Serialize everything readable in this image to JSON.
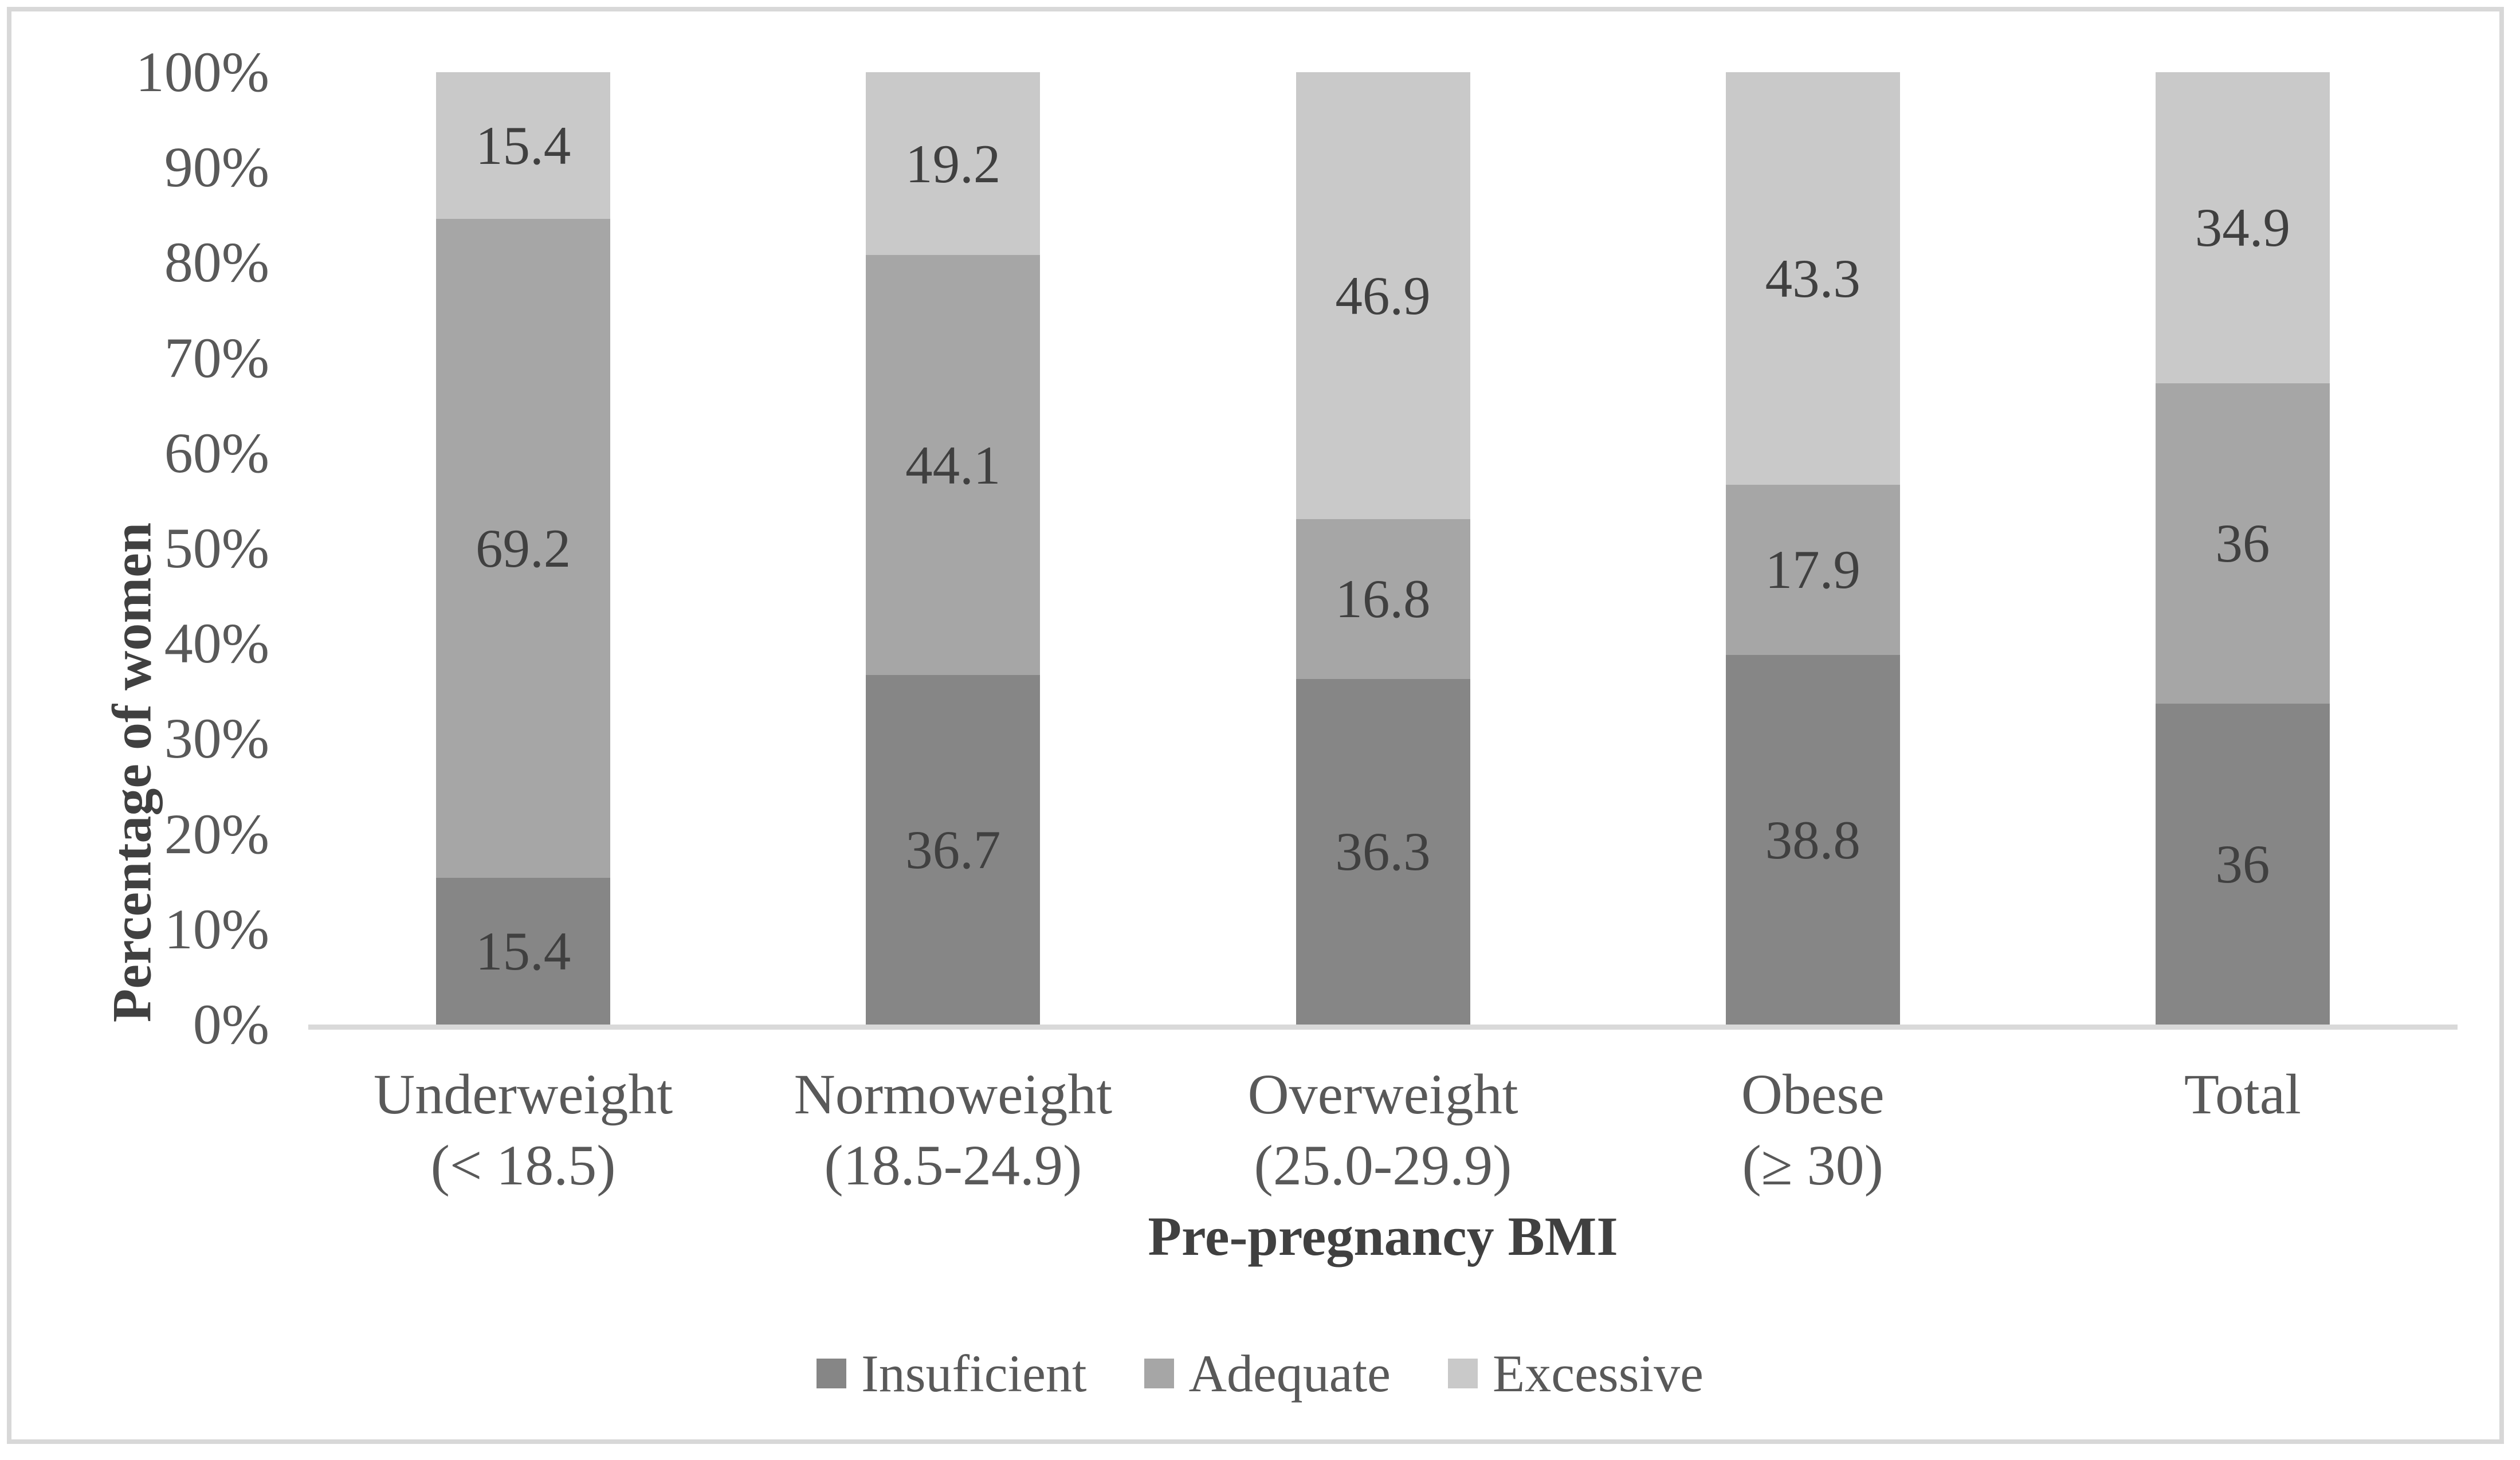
{
  "chart_data": {
    "type": "bar",
    "stacked": true,
    "percent_stacked": true,
    "title": "",
    "xlabel": "Pre-pregnancy BMI",
    "ylabel": "Percentage of women",
    "ylim": [
      0,
      100
    ],
    "grid": false,
    "legend_position": "bottom",
    "y_ticks": [
      "0%",
      "10%",
      "20%",
      "30%",
      "40%",
      "50%",
      "60%",
      "70%",
      "80%",
      "90%",
      "100%"
    ],
    "categories": [
      [
        "Underweight",
        "(< 18.5)"
      ],
      [
        "Normoweight",
        "(18.5-24.9)"
      ],
      [
        "Overweight",
        "(25.0-29.9)"
      ],
      [
        "Obese",
        "(≥ 30)"
      ],
      [
        "Total"
      ]
    ],
    "series": [
      {
        "name": "Insuficient",
        "color": "#868686",
        "values": [
          15.4,
          36.7,
          36.3,
          38.8,
          36
        ]
      },
      {
        "name": "Adequate",
        "color": "#A6A6A6",
        "values": [
          69.2,
          44.1,
          16.8,
          17.9,
          36
        ]
      },
      {
        "name": "Excessive",
        "color": "#C9C9C9",
        "values": [
          15.4,
          19.2,
          46.9,
          43.3,
          34.9
        ]
      }
    ],
    "colors": {
      "axis_line": "#D9D9D9",
      "frame_border": "#D8D8D8",
      "tick_text": "#595959",
      "title_text": "#404040",
      "data_label_text": "#404040"
    }
  }
}
